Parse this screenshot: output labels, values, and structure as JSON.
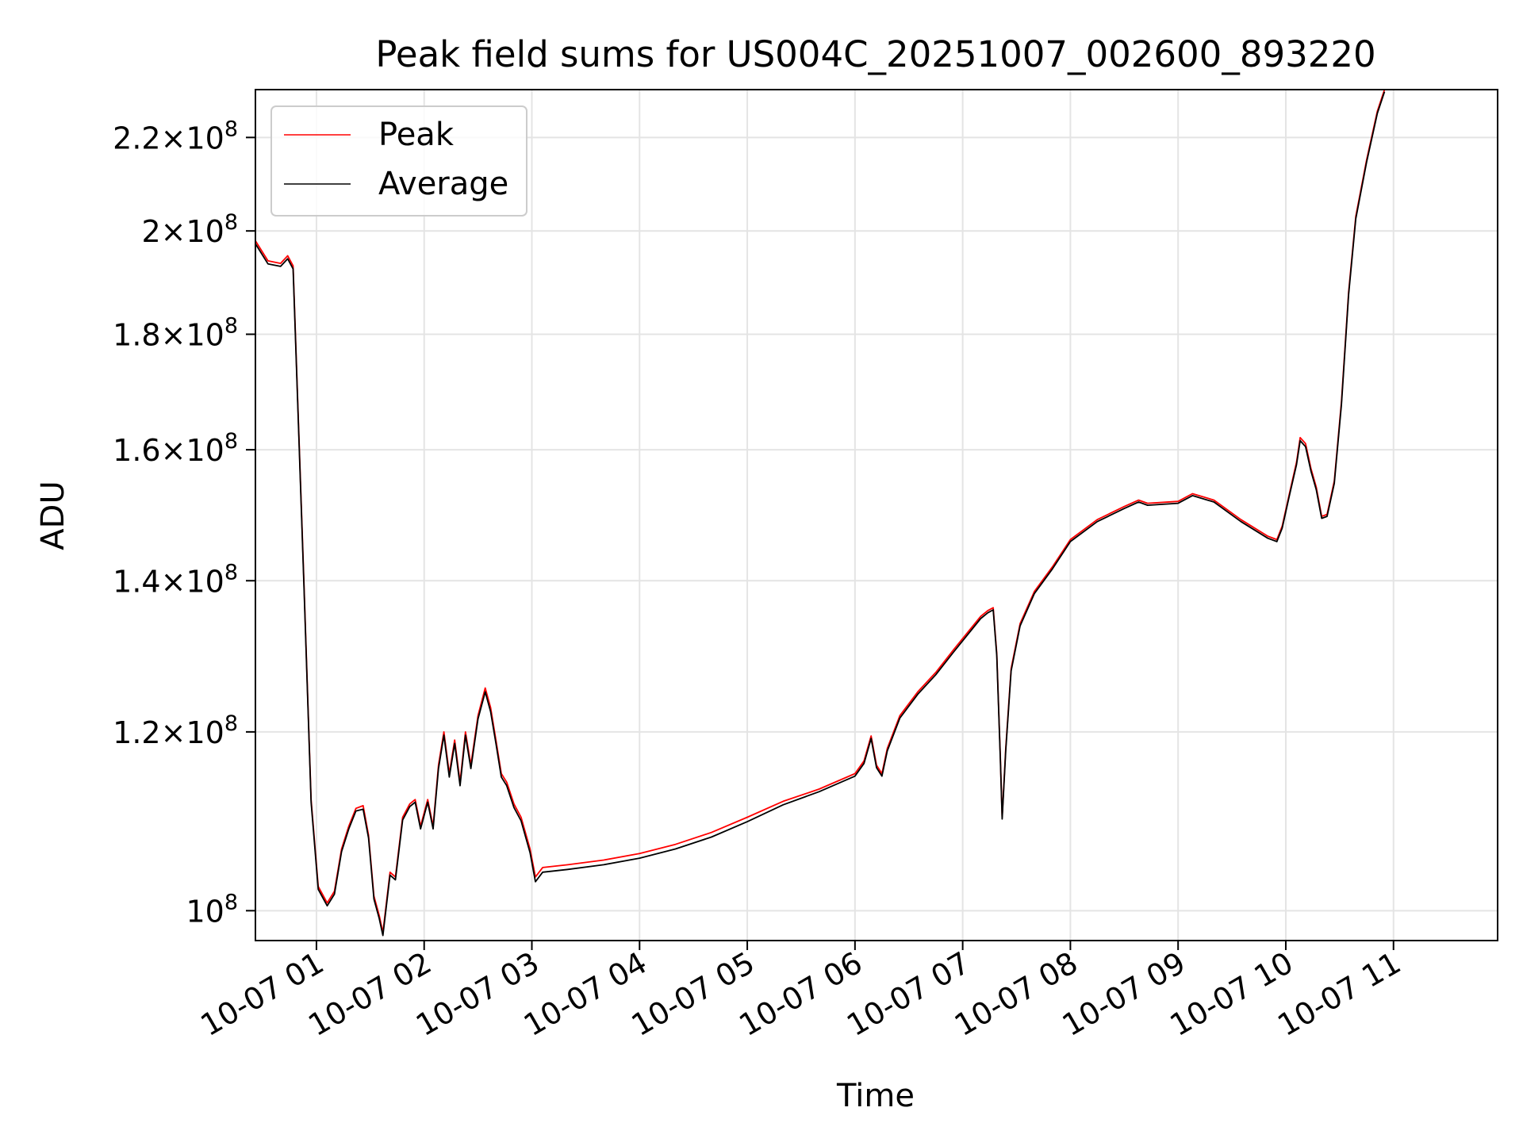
{
  "chart_data": {
    "type": "line",
    "title": "Peak field sums for US004C_20251007_002600_893220",
    "xlabel": "Time",
    "ylabel": "ADU",
    "x_ticks": [
      "10-07 01",
      "10-07 02",
      "10-07 03",
      "10-07 04",
      "10-07 05",
      "10-07 06",
      "10-07 07",
      "10-07 08",
      "10-07 09",
      "10-07 10",
      "10-07 11"
    ],
    "y_scale": "log",
    "y_ticks": [
      {
        "value": 100000000,
        "mantissa": "",
        "exponent": "8"
      },
      {
        "value": 120000000,
        "mantissa": "1.2",
        "exponent": "8"
      },
      {
        "value": 140000000,
        "mantissa": "1.4",
        "exponent": "8"
      },
      {
        "value": 160000000,
        "mantissa": "1.6",
        "exponent": "8"
      },
      {
        "value": 180000000,
        "mantissa": "1.8",
        "exponent": "8"
      },
      {
        "value": 200000000,
        "mantissa": "2",
        "exponent": "8"
      },
      {
        "value": 220000000,
        "mantissa": "2.2",
        "exponent": "8"
      }
    ],
    "xlim": [
      "10-07 00:26",
      "10-07 11:58"
    ],
    "ylim": [
      97000000,
      231000000
    ],
    "grid": true,
    "legend_position": "top-left",
    "series": [
      {
        "name": "Peak",
        "color": "#ff0000",
        "points": [
          [
            "10-07 00:26",
            198000000
          ],
          [
            "10-07 00:33",
            194000000
          ],
          [
            "10-07 00:40",
            193500000
          ],
          [
            "10-07 00:44",
            195000000
          ],
          [
            "10-07 00:47",
            193000000
          ],
          [
            "10-07 00:53",
            140000000
          ],
          [
            "10-07 00:57",
            112000000
          ],
          [
            "10-07 01:01",
            102500000
          ],
          [
            "10-07 01:06",
            100800000
          ],
          [
            "10-07 01:10",
            102000000
          ],
          [
            "10-07 01:14",
            106500000
          ],
          [
            "10-07 01:18",
            109000000
          ],
          [
            "10-07 01:22",
            111000000
          ],
          [
            "10-07 01:26",
            111300000
          ],
          [
            "10-07 01:29",
            108000000
          ],
          [
            "10-07 01:32",
            101500000
          ],
          [
            "10-07 01:35",
            99500000
          ],
          [
            "10-07 01:37",
            97800000
          ],
          [
            "10-07 01:41",
            104000000
          ],
          [
            "10-07 01:44",
            103500000
          ],
          [
            "10-07 01:48",
            110000000
          ],
          [
            "10-07 01:52",
            111500000
          ],
          [
            "10-07 01:55",
            112000000
          ],
          [
            "10-07 01:58",
            109000000
          ],
          [
            "10-07 02:02",
            112000000
          ],
          [
            "10-07 02:05",
            109000000
          ],
          [
            "10-07 02:08",
            116000000
          ],
          [
            "10-07 02:11",
            120000000
          ],
          [
            "10-07 02:14",
            115000000
          ],
          [
            "10-07 02:17",
            119000000
          ],
          [
            "10-07 02:20",
            114000000
          ],
          [
            "10-07 02:23",
            120000000
          ],
          [
            "10-07 02:26",
            116000000
          ],
          [
            "10-07 02:30",
            122000000
          ],
          [
            "10-07 02:34",
            125500000
          ],
          [
            "10-07 02:37",
            123000000
          ],
          [
            "10-07 02:40",
            119000000
          ],
          [
            "10-07 02:43",
            115000000
          ],
          [
            "10-07 02:46",
            114000000
          ],
          [
            "10-07 02:50",
            111500000
          ],
          [
            "10-07 02:54",
            110000000
          ],
          [
            "10-07 02:59",
            106500000
          ],
          [
            "10-07 03:02",
            103500000
          ],
          [
            "10-07 03:06",
            104500000
          ],
          [
            "10-07 03:20",
            104800000
          ],
          [
            "10-07 03:40",
            105300000
          ],
          [
            "10-07 04:00",
            106000000
          ],
          [
            "10-07 04:20",
            107000000
          ],
          [
            "10-07 04:40",
            108300000
          ],
          [
            "10-07 05:00",
            110000000
          ],
          [
            "10-07 05:20",
            111800000
          ],
          [
            "10-07 05:40",
            113200000
          ],
          [
            "10-07 06:00",
            115000000
          ],
          [
            "10-07 06:05",
            116500000
          ],
          [
            "10-07 06:09",
            119500000
          ],
          [
            "10-07 06:12",
            116000000
          ],
          [
            "10-07 06:15",
            115000000
          ],
          [
            "10-07 06:18",
            118000000
          ],
          [
            "10-07 06:25",
            122000000
          ],
          [
            "10-07 06:35",
            125000000
          ],
          [
            "10-07 06:45",
            127500000
          ],
          [
            "10-07 06:55",
            130500000
          ],
          [
            "10-07 07:10",
            135000000
          ],
          [
            "10-07 07:14",
            135800000
          ],
          [
            "10-07 07:17",
            136200000
          ],
          [
            "10-07 07:19",
            130000000
          ],
          [
            "10-07 07:21",
            117000000
          ],
          [
            "10-07 07:22",
            110000000
          ],
          [
            "10-07 07:24",
            118000000
          ],
          [
            "10-07 07:27",
            128000000
          ],
          [
            "10-07 07:32",
            134000000
          ],
          [
            "10-07 07:40",
            138500000
          ],
          [
            "10-07 07:50",
            142000000
          ],
          [
            "10-07 08:00",
            146000000
          ],
          [
            "10-07 08:15",
            149000000
          ],
          [
            "10-07 08:30",
            151000000
          ],
          [
            "10-07 08:38",
            152000000
          ],
          [
            "10-07 08:43",
            151500000
          ],
          [
            "10-07 09:00",
            151800000
          ],
          [
            "10-07 09:08",
            153000000
          ],
          [
            "10-07 09:20",
            152000000
          ],
          [
            "10-07 09:35",
            149000000
          ],
          [
            "10-07 09:50",
            146500000
          ],
          [
            "10-07 09:55",
            146000000
          ],
          [
            "10-07 09:58",
            148000000
          ],
          [
            "10-07 10:02",
            153000000
          ],
          [
            "10-07 10:06",
            158000000
          ],
          [
            "10-07 10:08",
            162000000
          ],
          [
            "10-07 10:11",
            161000000
          ],
          [
            "10-07 10:14",
            157000000
          ],
          [
            "10-07 10:17",
            154000000
          ],
          [
            "10-07 10:20",
            149500000
          ],
          [
            "10-07 10:23",
            149800000
          ],
          [
            "10-07 10:27",
            155000000
          ],
          [
            "10-07 10:31",
            168000000
          ],
          [
            "10-07 10:35",
            188000000
          ],
          [
            "10-07 10:39",
            203000000
          ],
          [
            "10-07 10:45",
            215000000
          ],
          [
            "10-07 10:51",
            226000000
          ],
          [
            "10-07 10:55",
            231000000
          ]
        ]
      },
      {
        "name": "Average",
        "color": "#000000",
        "points": [
          [
            "10-07 00:26",
            197400000
          ],
          [
            "10-07 00:33",
            193400000
          ],
          [
            "10-07 00:40",
            192900000
          ],
          [
            "10-07 00:44",
            194400000
          ],
          [
            "10-07 00:47",
            192400000
          ],
          [
            "10-07 00:53",
            139500000
          ],
          [
            "10-07 00:57",
            111700000
          ],
          [
            "10-07 01:01",
            102200000
          ],
          [
            "10-07 01:06",
            100500000
          ],
          [
            "10-07 01:10",
            101700000
          ],
          [
            "10-07 01:14",
            106200000
          ],
          [
            "10-07 01:18",
            108700000
          ],
          [
            "10-07 01:22",
            110700000
          ],
          [
            "10-07 01:26",
            110900000
          ],
          [
            "10-07 01:29",
            107700000
          ],
          [
            "10-07 01:32",
            101200000
          ],
          [
            "10-07 01:35",
            99200000
          ],
          [
            "10-07 01:37",
            97500000
          ],
          [
            "10-07 01:41",
            103700000
          ],
          [
            "10-07 01:44",
            103200000
          ],
          [
            "10-07 01:48",
            109700000
          ],
          [
            "10-07 01:52",
            111200000
          ],
          [
            "10-07 01:55",
            111700000
          ],
          [
            "10-07 01:58",
            108700000
          ],
          [
            "10-07 02:02",
            111700000
          ],
          [
            "10-07 02:05",
            108700000
          ],
          [
            "10-07 02:08",
            115600000
          ],
          [
            "10-07 02:11",
            119600000
          ],
          [
            "10-07 02:14",
            114600000
          ],
          [
            "10-07 02:17",
            118600000
          ],
          [
            "10-07 02:20",
            113600000
          ],
          [
            "10-07 02:23",
            119600000
          ],
          [
            "10-07 02:26",
            115600000
          ],
          [
            "10-07 02:30",
            121600000
          ],
          [
            "10-07 02:34",
            125000000
          ],
          [
            "10-07 02:37",
            122500000
          ],
          [
            "10-07 02:40",
            118600000
          ],
          [
            "10-07 02:43",
            114600000
          ],
          [
            "10-07 02:46",
            113600000
          ],
          [
            "10-07 02:50",
            111100000
          ],
          [
            "10-07 02:54",
            109600000
          ],
          [
            "10-07 02:59",
            106100000
          ],
          [
            "10-07 03:02",
            103000000
          ],
          [
            "10-07 03:06",
            104000000
          ],
          [
            "10-07 03:20",
            104300000
          ],
          [
            "10-07 03:40",
            104800000
          ],
          [
            "10-07 04:00",
            105500000
          ],
          [
            "10-07 04:20",
            106500000
          ],
          [
            "10-07 04:40",
            107800000
          ],
          [
            "10-07 05:00",
            109500000
          ],
          [
            "10-07 05:20",
            111400000
          ],
          [
            "10-07 05:40",
            112900000
          ],
          [
            "10-07 06:00",
            114700000
          ],
          [
            "10-07 06:05",
            116200000
          ],
          [
            "10-07 06:09",
            119200000
          ],
          [
            "10-07 06:12",
            115700000
          ],
          [
            "10-07 06:15",
            114700000
          ],
          [
            "10-07 06:18",
            117700000
          ],
          [
            "10-07 06:25",
            121700000
          ],
          [
            "10-07 06:35",
            124700000
          ],
          [
            "10-07 06:45",
            127200000
          ],
          [
            "10-07 06:55",
            130200000
          ],
          [
            "10-07 07:10",
            134700000
          ],
          [
            "10-07 07:14",
            135500000
          ],
          [
            "10-07 07:17",
            135900000
          ],
          [
            "10-07 07:19",
            129700000
          ],
          [
            "10-07 07:21",
            116700000
          ],
          [
            "10-07 07:22",
            109800000
          ],
          [
            "10-07 07:24",
            117700000
          ],
          [
            "10-07 07:27",
            127700000
          ],
          [
            "10-07 07:32",
            133700000
          ],
          [
            "10-07 07:40",
            138200000
          ],
          [
            "10-07 07:50",
            141700000
          ],
          [
            "10-07 08:00",
            145700000
          ],
          [
            "10-07 08:15",
            148700000
          ],
          [
            "10-07 08:30",
            150700000
          ],
          [
            "10-07 08:38",
            151700000
          ],
          [
            "10-07 08:43",
            151200000
          ],
          [
            "10-07 09:00",
            151500000
          ],
          [
            "10-07 09:08",
            152700000
          ],
          [
            "10-07 09:20",
            151700000
          ],
          [
            "10-07 09:35",
            148700000
          ],
          [
            "10-07 09:50",
            146200000
          ],
          [
            "10-07 09:55",
            145700000
          ],
          [
            "10-07 09:58",
            147700000
          ],
          [
            "10-07 10:02",
            152700000
          ],
          [
            "10-07 10:06",
            157600000
          ],
          [
            "10-07 10:08",
            161500000
          ],
          [
            "10-07 10:11",
            160500000
          ],
          [
            "10-07 10:14",
            156600000
          ],
          [
            "10-07 10:17",
            153600000
          ],
          [
            "10-07 10:20",
            149200000
          ],
          [
            "10-07 10:23",
            149500000
          ],
          [
            "10-07 10:27",
            154600000
          ],
          [
            "10-07 10:31",
            167500000
          ],
          [
            "10-07 10:35",
            187500000
          ],
          [
            "10-07 10:39",
            202500000
          ],
          [
            "10-07 10:45",
            214500000
          ],
          [
            "10-07 10:51",
            225500000
          ],
          [
            "10-07 10:55",
            230500000
          ]
        ]
      }
    ]
  }
}
